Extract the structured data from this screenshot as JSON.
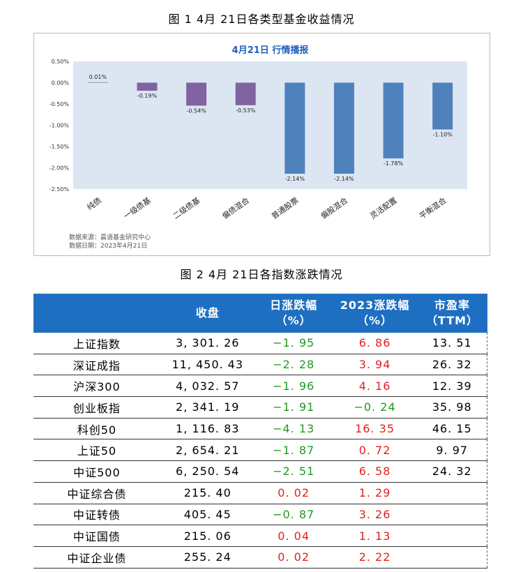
{
  "figure1": {
    "caption": "图 1   4月 21日各类型基金收益情况",
    "notes": [
      "数据来源：晨语基金研究中心",
      "数据日期：2023年4月21日"
    ]
  },
  "chart_data": {
    "type": "bar",
    "title": "4月21日   行情播报",
    "categories": [
      "纯债",
      "一级债基",
      "二级债基",
      "偏债混合",
      "普通股票",
      "偏股混合",
      "灵活配置",
      "平衡混合"
    ],
    "values": [
      0.01,
      -0.19,
      -0.54,
      -0.53,
      -2.14,
      -2.14,
      -1.78,
      -1.1
    ],
    "data_labels": [
      "0.01%",
      "-0.19%",
      "-0.54%",
      "-0.53%",
      "-2.14%",
      "-2.14%",
      "-1.78%",
      "-1.10%"
    ],
    "ylim": [
      -2.5,
      0.5
    ],
    "yticks": [
      "0.50%",
      "0.00%",
      "-0.50%",
      "-1.00%",
      "-1.50%",
      "-2.00%",
      "-2.50%"
    ],
    "ytick_values": [
      0.5,
      0,
      -0.5,
      -1.0,
      -1.5,
      -2.0,
      -2.5
    ],
    "colors": [
      "#9a9a9a",
      "#8064a2",
      "#8064a2",
      "#8064a2",
      "#4f81bd",
      "#4f81bd",
      "#4f81bd",
      "#4f81bd"
    ],
    "plot_bg": "#dce6f2",
    "xlabel": "",
    "ylabel": "",
    "legend": "none",
    "grid": false
  },
  "figure2": {
    "caption": "图 2   4月 21日各指数涨跌情况",
    "header": [
      "",
      "收盘",
      "日涨跌幅\n（%）",
      "2023涨跌幅\n（%）",
      "市盈率\n（TTM）"
    ],
    "header_color": "#1e6fc1",
    "rows": [
      {
        "name": "上证指数",
        "close": "3, 301. 26",
        "day": "−1. 95",
        "day_sign": "neg",
        "ytd": "6. 86",
        "ytd_sign": "pos",
        "pe": "13. 51"
      },
      {
        "name": "深证成指",
        "close": "11, 450. 43",
        "day": "−2. 28",
        "day_sign": "neg",
        "ytd": "3. 94",
        "ytd_sign": "pos",
        "pe": "26. 32"
      },
      {
        "name": "沪深300",
        "close": "4, 032. 57",
        "day": "−1. 96",
        "day_sign": "neg",
        "ytd": "4. 16",
        "ytd_sign": "pos",
        "pe": "12. 39"
      },
      {
        "name": "创业板指",
        "close": "2, 341. 19",
        "day": "−1. 91",
        "day_sign": "neg",
        "ytd": "−0. 24",
        "ytd_sign": "neg",
        "pe": "35. 98"
      },
      {
        "name": "科创50",
        "close": "1, 116. 83",
        "day": "−4. 13",
        "day_sign": "neg",
        "ytd": "16. 35",
        "ytd_sign": "pos",
        "pe": "46. 15"
      },
      {
        "name": "上证50",
        "close": "2, 654. 21",
        "day": "−1. 87",
        "day_sign": "neg",
        "ytd": "0. 72",
        "ytd_sign": "pos",
        "pe": "9. 97"
      },
      {
        "name": "中证500",
        "close": "6, 250. 54",
        "day": "−2. 51",
        "day_sign": "neg",
        "ytd": "6. 58",
        "ytd_sign": "pos",
        "pe": "24. 32"
      },
      {
        "name": "中证综合债",
        "close": "215. 40",
        "day": "0. 02",
        "day_sign": "pos",
        "ytd": "1. 29",
        "ytd_sign": "pos",
        "pe": ""
      },
      {
        "name": "中证转债",
        "close": "405. 45",
        "day": "−0. 87",
        "day_sign": "neg",
        "ytd": "3. 26",
        "ytd_sign": "pos",
        "pe": ""
      },
      {
        "name": "中证国债",
        "close": "215. 06",
        "day": "0. 04",
        "day_sign": "pos",
        "ytd": "1. 13",
        "ytd_sign": "pos",
        "pe": ""
      },
      {
        "name": "中证企业债",
        "close": "255. 24",
        "day": "0. 02",
        "day_sign": "pos",
        "ytd": "2. 22",
        "ytd_sign": "pos",
        "pe": ""
      }
    ]
  }
}
